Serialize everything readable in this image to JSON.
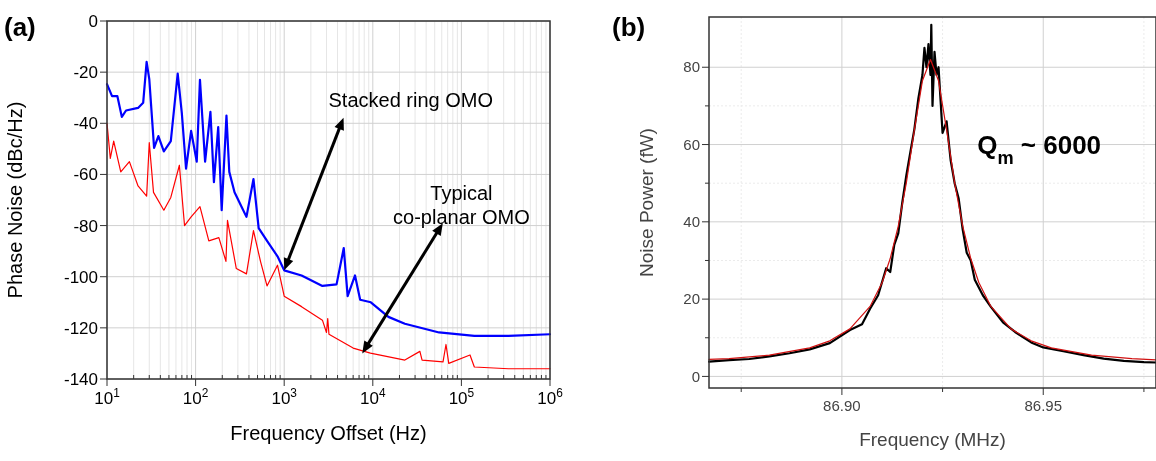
{
  "chart_data": [
    {
      "type": "line",
      "title": "(a)",
      "xlabel": "Frequency Offset (Hz)",
      "ylabel": "Phase Noise (dBc/Hz)",
      "log": "x",
      "grid": true,
      "xlim": [
        10,
        1000000
      ],
      "xticks": [
        {
          "value": 10,
          "label": "10$^{1}$"
        },
        {
          "value": 100,
          "label": "10$^{2}$"
        },
        {
          "value": 1000,
          "label": "10$^{3}$"
        },
        {
          "value": 10000,
          "label": "10$^{4}$"
        },
        {
          "value": 100000,
          "label": "10$^{5}$"
        },
        {
          "value": 1000000,
          "label": "10$^{6}$"
        }
      ],
      "ylim": [
        -140,
        0
      ],
      "yticks": [
        -140,
        -120,
        -100,
        -80,
        -60,
        -40,
        -20,
        0
      ],
      "annotations": [
        {
          "text": "Stacked ring OMO",
          "x": 1000,
          "y": -97.5
        },
        {
          "text": "Typical\nco-planar OMO",
          "x": 7600,
          "y": -130
        }
      ],
      "series": [
        {
          "color": "#0000ff",
          "x": [
            10,
            11.4,
            13.1,
            14.7,
            16.4,
            22.4,
            25.6,
            28,
            30,
            34,
            38,
            43.8,
            52.5,
            62.8,
            69.9,
            78,
            89,
            103,
            112,
            128,
            147,
            161,
            180,
            197,
            223,
            240,
            275,
            330,
            375,
            450,
            515,
            640,
            840,
            1000,
            1570,
            2700,
            3900,
            4700,
            5200,
            6300,
            7200,
            9500,
            15000,
            23000,
            56000,
            140000,
            340000,
            1000000
          ],
          "values": [
            -24.7,
            -29.4,
            -29.4,
            -37.5,
            -35,
            -34,
            -32,
            -16,
            -22.7,
            -49.6,
            -45,
            -51,
            -47,
            -20.6,
            -36,
            -57.7,
            -43,
            -55,
            -23,
            -55,
            -35.5,
            -63,
            -41.5,
            -74,
            -37,
            -59,
            -67,
            -72.6,
            -76.6,
            -61.8,
            -81,
            -86,
            -92,
            -97.5,
            -99.5,
            -103.6,
            -103,
            -88.8,
            -107.6,
            -99.5,
            -109,
            -110,
            -115.7,
            -118.4,
            -121.8,
            -123.1,
            -123.1,
            -122.5
          ]
        },
        {
          "color": "#ff0000",
          "x": [
            10,
            10.9,
            11.9,
            14.3,
            17.9,
            22.4,
            28,
            30,
            33.5,
            43.8,
            52.5,
            65.6,
            75,
            89,
            112,
            141,
            183,
            220,
            229,
            288,
            375,
            450,
            540,
            640,
            840,
            1000,
            1570,
            2700,
            3000,
            3100,
            3200,
            6000,
            9400,
            23000,
            34000,
            36000,
            62000,
            67000,
            72000,
            125000,
            140000,
            340000,
            1000000
          ],
          "values": [
            -40,
            -53.7,
            -47,
            -59,
            -55,
            -64.5,
            -68.5,
            -47.6,
            -67,
            -74,
            -69,
            -56.4,
            -80,
            -76.6,
            -72.6,
            -86,
            -84.7,
            -94,
            -78,
            -96.8,
            -98.9,
            -82,
            -94,
            -103.6,
            -95.5,
            -107.6,
            -111.7,
            -117,
            -121.8,
            -116.4,
            -122.5,
            -127.9,
            -129.9,
            -132.6,
            -129.2,
            -132.6,
            -133.3,
            -126.5,
            -133.9,
            -130.6,
            -135.3,
            -136,
            -136
          ]
        }
      ]
    },
    {
      "type": "line",
      "title": "(b)",
      "xlabel": "Frequency (MHz)",
      "ylabel": "Noise Power (fW)",
      "grid": true,
      "xlim": [
        86.867,
        86.978
      ],
      "xticks": [
        {
          "value": 86.875,
          "label": null
        },
        {
          "value": 86.9,
          "label": "86.90"
        },
        {
          "value": 86.925,
          "label": null
        },
        {
          "value": 86.95,
          "label": "86.95"
        },
        {
          "value": 86.975,
          "label": null
        }
      ],
      "ylim": [
        -3,
        93
      ],
      "yticks": [
        0,
        {
          "value": 10,
          "label": null
        },
        20,
        {
          "value": 30,
          "label": null
        },
        40,
        {
          "value": 50,
          "label": null
        },
        60,
        {
          "value": 70,
          "label": null
        },
        80
      ],
      "annotations": [
        "Q$_{m}$ ~ 6000"
      ],
      "series": [
        {
          "color": "#000000",
          "x": [
            86.867,
            86.872,
            86.877,
            86.882,
            86.887,
            86.892,
            86.897,
            86.902,
            86.905,
            86.907,
            86.909,
            86.911,
            86.912,
            86.913,
            86.914,
            86.915,
            86.916,
            86.917,
            86.918,
            86.919,
            86.92,
            86.9205,
            86.921,
            86.9215,
            86.922,
            86.9222,
            86.9225,
            86.923,
            86.9235,
            86.924,
            86.925,
            86.926,
            86.927,
            86.928,
            86.929,
            86.93,
            86.931,
            86.932,
            86.933,
            86.935,
            86.937,
            86.94,
            86.943,
            86.947,
            86.95,
            86.955,
            86.96,
            86.965,
            86.97,
            86.975,
            86.978
          ],
          "values": [
            3.8,
            4.2,
            4.5,
            5.2,
            6,
            7,
            8.6,
            12,
            13.5,
            17.5,
            21,
            28,
            27,
            34,
            37,
            45,
            52,
            58,
            64,
            72,
            78,
            85,
            80,
            86,
            78,
            91,
            70,
            84,
            78,
            80,
            63,
            66,
            56,
            50,
            46,
            38,
            32,
            30,
            25,
            21,
            18,
            14,
            11.5,
            8.8,
            7.5,
            6.5,
            5.5,
            4.6,
            4,
            3.7,
            3.6
          ]
        },
        {
          "color": "#d01010",
          "x": [
            86.867,
            86.872,
            86.882,
            86.892,
            86.897,
            86.902,
            86.907,
            86.91,
            86.912,
            86.914,
            86.916,
            86.918,
            86.92,
            86.922,
            86.924,
            86.926,
            86.928,
            86.93,
            86.932,
            86.934,
            86.937,
            86.942,
            86.947,
            86.952,
            86.962,
            86.972,
            86.978
          ],
          "values": [
            4.4,
            4.6,
            5.5,
            7.4,
            9.2,
            12.3,
            18.1,
            24.3,
            30.5,
            38.9,
            50.1,
            63.8,
            76.5,
            82,
            76.5,
            63.8,
            50.1,
            38.9,
            30.5,
            24.3,
            18.1,
            12.3,
            9.2,
            7.4,
            5.5,
            4.6,
            4.3
          ]
        }
      ]
    }
  ]
}
